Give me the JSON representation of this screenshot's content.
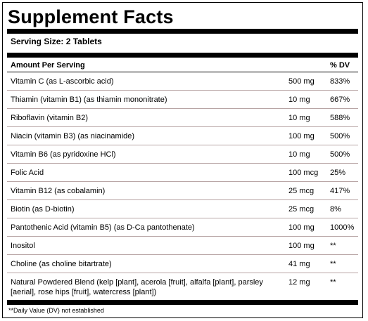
{
  "title": "Supplement Facts",
  "serving_size": "Serving Size: 2 Tablets",
  "headers": {
    "amount": "Amount Per Serving",
    "dv": "% DV"
  },
  "rows": [
    {
      "name": "Vitamin C (as L-ascorbic acid)",
      "amount": "500 mg",
      "dv": "833%"
    },
    {
      "name": "Thiamin (vitamin B1) (as thiamin mononitrate)",
      "amount": "10 mg",
      "dv": "667%"
    },
    {
      "name": "Riboflavin (vitamin B2)",
      "amount": "10 mg",
      "dv": "588%"
    },
    {
      "name": "Niacin (vitamin B3) (as niacinamide)",
      "amount": "100 mg",
      "dv": "500%"
    },
    {
      "name": "Vitamin B6 (as pyridoxine HCl)",
      "amount": "10 mg",
      "dv": "500%"
    },
    {
      "name": "Folic Acid",
      "amount": "100 mcg",
      "dv": "25%"
    },
    {
      "name": "Vitamin B12 (as cobalamin)",
      "amount": "25 mcg",
      "dv": "417%"
    },
    {
      "name": "Biotin (as D-biotin)",
      "amount": "25 mcg",
      "dv": "8%"
    },
    {
      "name": "Pantothenic Acid (vitamin B5) (as D-Ca pantothenate)",
      "amount": "100 mg",
      "dv": "1000%"
    },
    {
      "name": "Inositol",
      "amount": "100 mg",
      "dv": "**"
    },
    {
      "name": "Choline (as choline bitartrate)",
      "amount": "41 mg",
      "dv": "**"
    },
    {
      "name": "Natural Powdered Blend (kelp [plant], acerola [fruit], alfalfa [plant], parsley [aerial], rose hips [fruit], watercress [plant])",
      "amount": "12 mg",
      "dv": "**"
    }
  ],
  "footnote": "**Daily Value (DV) not established"
}
